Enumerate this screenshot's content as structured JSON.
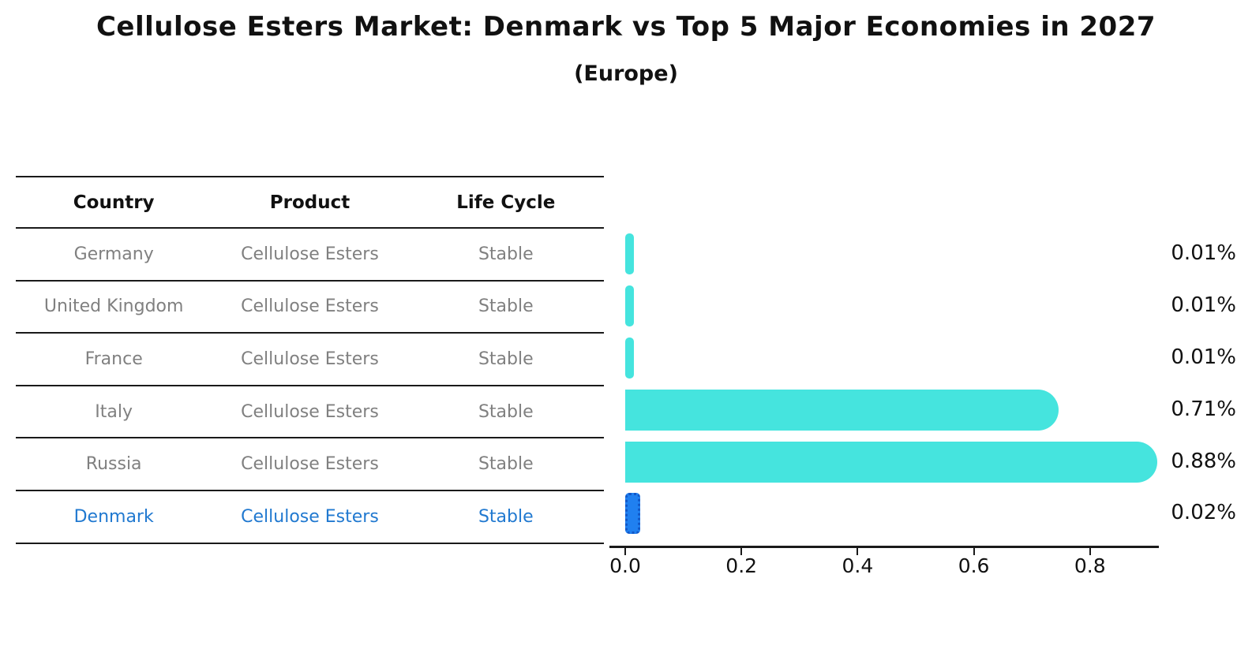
{
  "title": "Cellulose Esters Market: Denmark vs Top 5 Major Economies in 2027",
  "subtitle": "(Europe)",
  "table": {
    "headers": [
      "Country",
      "Product",
      "Life Cycle"
    ],
    "rows": [
      {
        "country": "Germany",
        "product": "Cellulose Esters",
        "life_cycle": "Stable",
        "highlight": false
      },
      {
        "country": "United Kingdom",
        "product": "Cellulose Esters",
        "life_cycle": "Stable",
        "highlight": false
      },
      {
        "country": "France",
        "product": "Cellulose Esters",
        "life_cycle": "Stable",
        "highlight": false
      },
      {
        "country": "Italy",
        "product": "Cellulose Esters",
        "life_cycle": "Stable",
        "highlight": false
      },
      {
        "country": "Russia",
        "product": "Cellulose Esters",
        "life_cycle": "Stable",
        "highlight": false
      },
      {
        "country": "Denmark",
        "product": "Cellulose Esters",
        "life_cycle": "Stable",
        "highlight": true
      }
    ]
  },
  "chart_data": {
    "type": "bar",
    "orientation": "horizontal",
    "title": "Cellulose Esters Market: Denmark vs Top 5 Major Economies in 2027",
    "subtitle": "(Europe)",
    "categories": [
      "Germany",
      "United Kingdom",
      "France",
      "Italy",
      "Russia",
      "Denmark"
    ],
    "values": [
      0.01,
      0.01,
      0.01,
      0.71,
      0.88,
      0.02
    ],
    "value_labels": [
      "0.01%",
      "0.01%",
      "0.01%",
      "0.71%",
      "0.88%",
      "0.02%"
    ],
    "unit": "%",
    "x_ticks": [
      "0.0",
      "0.2",
      "0.4",
      "0.6",
      "0.8"
    ],
    "x_tick_values": [
      0.0,
      0.2,
      0.4,
      0.6,
      0.8
    ],
    "xlim": [
      0,
      0.92
    ],
    "grid": false,
    "legend": false,
    "highlight_category": "Denmark",
    "colors": {
      "bar": "#45e4de",
      "highlight_bar": "#2080f0",
      "highlight_bar_border": "#1258c8",
      "highlight_text": "#2179d0",
      "row_text": "#808080",
      "header_text": "#111111",
      "label_text": "#111111"
    }
  }
}
